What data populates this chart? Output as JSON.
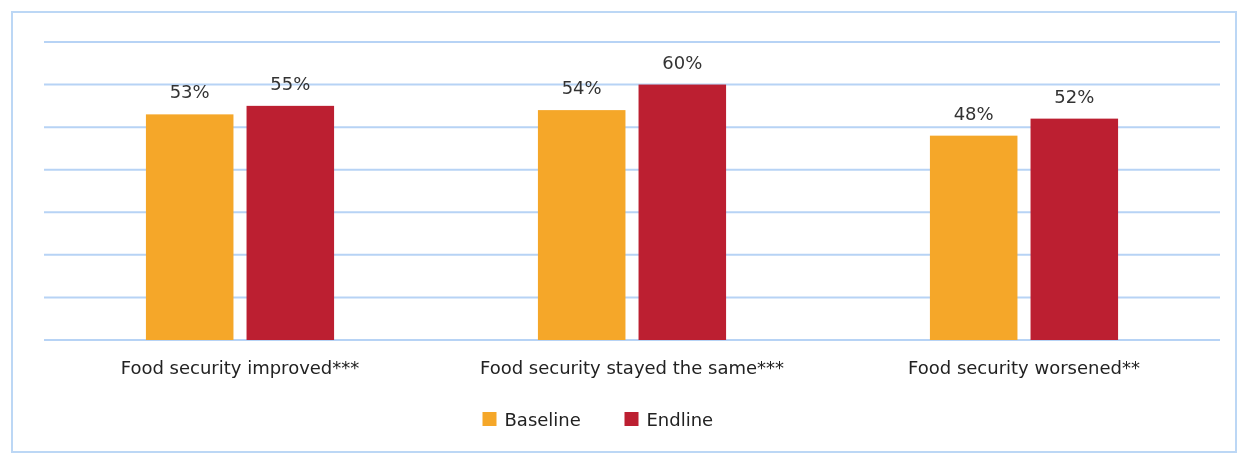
{
  "chart_data": {
    "type": "bar",
    "categories": [
      "Food security improved***",
      "Food security stayed the same***",
      "Food security worsened**"
    ],
    "series": [
      {
        "name": "Baseline",
        "color": "#f5a729",
        "values": [
          53,
          54,
          48
        ],
        "value_labels": [
          "53%",
          "54%",
          "48%"
        ]
      },
      {
        "name": "Endline",
        "color": "#bc1f31",
        "values": [
          55,
          60,
          52
        ],
        "value_labels": [
          "55%",
          "60%",
          "52%"
        ]
      }
    ],
    "ylim": [
      0,
      70
    ],
    "yticks": [
      {
        "value": 0,
        "label": null
      },
      {
        "value": 10,
        "label": null
      },
      {
        "value": 20,
        "label": null
      },
      {
        "value": 30,
        "label": null
      },
      {
        "value": 40,
        "label": null
      },
      {
        "value": 50,
        "label": null
      },
      {
        "value": 60,
        "label": null
      },
      {
        "value": 70,
        "label": null
      }
    ],
    "tick_labels": "x",
    "grid": "y",
    "legend": "bottom"
  }
}
